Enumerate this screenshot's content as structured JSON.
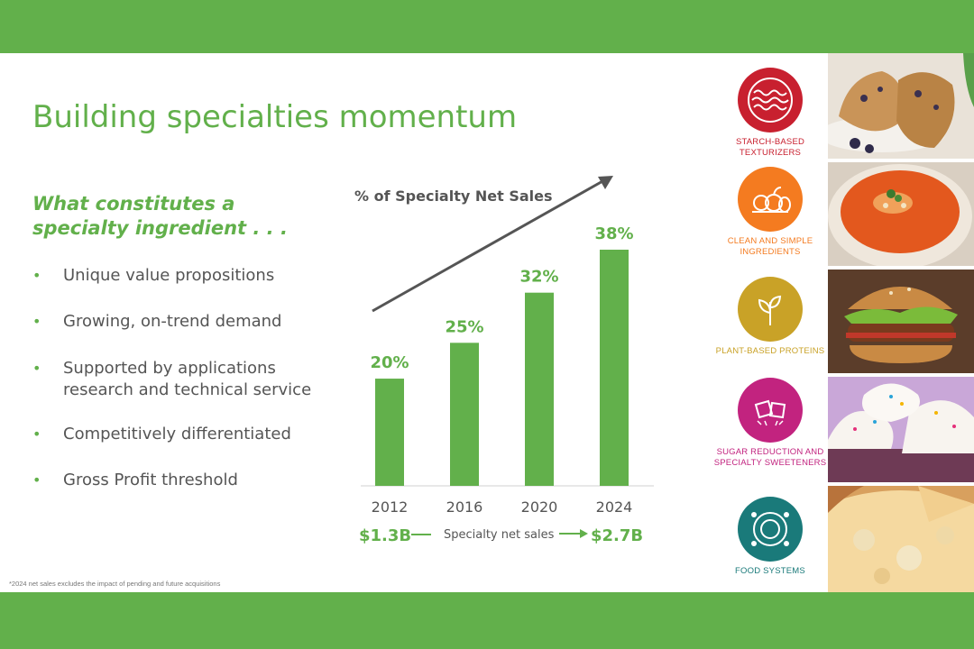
{
  "slide": {
    "title": "Building specialties momentum",
    "question": "What constitutes a specialty ingredient . . .",
    "bullets": [
      "Unique value propositions",
      "Growing, on-trend demand",
      "Supported by applications research and technical service",
      "Competitively differentiated",
      "Gross Profit threshold"
    ],
    "footnote": "*2024 net sales excludes the impact of pending and future acquisitions"
  },
  "chart_data": {
    "type": "bar",
    "title": "% of Specialty Net Sales",
    "categories": [
      "2012",
      "2016",
      "2020",
      "2024"
    ],
    "values": [
      20,
      25,
      32,
      38
    ],
    "value_labels": [
      "20%",
      "25%",
      "32%",
      "38%"
    ],
    "ylim": [
      0,
      40
    ],
    "grid": false,
    "legend": "none",
    "bar_color": "#62b04b",
    "trend_arrow": true,
    "sales_start": "$1.3B",
    "sales_label": "Specialty net sales",
    "sales_end": "$2.7B"
  },
  "categories": [
    {
      "label": "STARCH-BASED TEXTURIZERS",
      "color": "#c8202f",
      "icon": "waves-icon"
    },
    {
      "label": "CLEAN AND SIMPLE INGREDIENTS",
      "color": "#f47b20",
      "icon": "produce-icon"
    },
    {
      "label": "PLANT-BASED PROTEINS",
      "color": "#c9a227",
      "icon": "sprout-icon"
    },
    {
      "label": "SUGAR REDUCTION AND SPECIALTY SWEETENERS",
      "color": "#c2237f",
      "icon": "sugar-cubes-icon"
    },
    {
      "label": "FOOD SYSTEMS",
      "color": "#1a7a7a",
      "icon": "plate-icon"
    }
  ],
  "photos": [
    {
      "name": "muffins-photo"
    },
    {
      "name": "soup-photo"
    },
    {
      "name": "burger-photo"
    },
    {
      "name": "cupcakes-photo"
    },
    {
      "name": "pizza-photo"
    }
  ]
}
